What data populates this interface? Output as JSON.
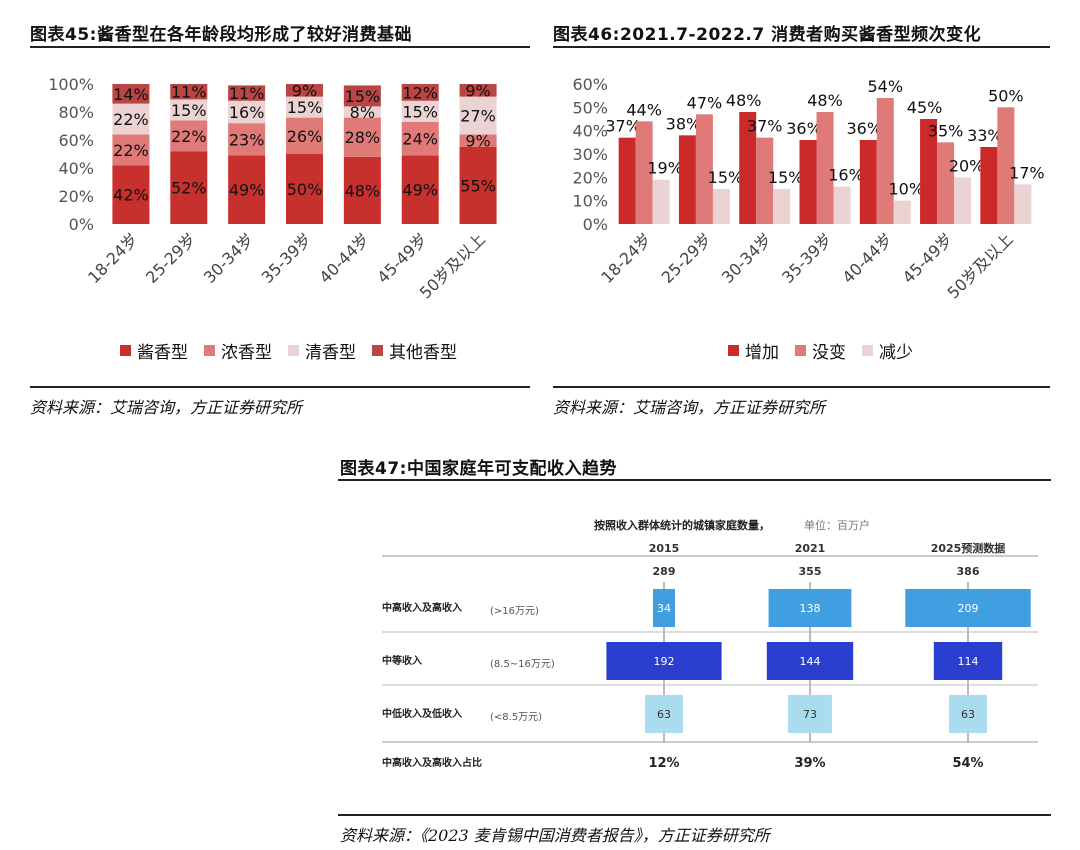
{
  "left": {
    "title": "图表45:酱香型在各年龄段均形成了较好消费基础",
    "source": "资料来源：艾瑞咨询，方正证券研究所",
    "legend": [
      {
        "label": "酱香型",
        "color": "#c8302e"
      },
      {
        "label": "浓香型",
        "color": "#e07a78"
      },
      {
        "label": "清香型",
        "color": "#ecd3d3"
      },
      {
        "label": "其他香型",
        "color": "#b94545"
      }
    ]
  },
  "right": {
    "title": "图表46:2021.7-2022.7 消费者购买酱香型频次变化",
    "source": "资料来源：艾瑞咨询，方正证券研究所",
    "legend": [
      {
        "label": "增加",
        "color": "#cc2a2a"
      },
      {
        "label": "没变",
        "color": "#e07a78"
      },
      {
        "label": "减少",
        "color": "#ecd3d3"
      }
    ]
  },
  "bottom": {
    "title": "图表47:中国家庭年可支配收入趋势",
    "source": "资料来源：《2023 麦肯锡中国消费者报告》，方正证券研究所",
    "subtitle": "按照收入群体统计的城镇家庭数量，",
    "unit": "单位：百万户",
    "rows": [
      {
        "label": "中高收入及高收入",
        "range": "(>16万元)"
      },
      {
        "label": "中等收入",
        "range": "(8.5~16万元)"
      },
      {
        "label": "中低收入及低收入",
        "range": "(<8.5万元)"
      }
    ],
    "share_label": "中高收入及高收入占比"
  },
  "chart_data": [
    {
      "type": "bar",
      "stacked": true,
      "categories": [
        "18-24岁",
        "25-29岁",
        "30-34岁",
        "35-39岁",
        "40-44岁",
        "45-49岁",
        "50岁及以上"
      ],
      "series": [
        {
          "name": "酱香型",
          "values": [
            42,
            52,
            49,
            50,
            48,
            49,
            55
          ],
          "color": "#c8302e"
        },
        {
          "name": "浓香型",
          "values": [
            22,
            22,
            23,
            26,
            28,
            24,
            9
          ],
          "color": "#e07a78"
        },
        {
          "name": "清香型",
          "values": [
            22,
            15,
            16,
            15,
            8,
            15,
            27
          ],
          "color": "#ecd3d3"
        },
        {
          "name": "其他香型",
          "values": [
            14,
            11,
            11,
            9,
            15,
            12,
            9
          ],
          "color": "#b94545"
        }
      ],
      "yticks": [
        "0%",
        "20%",
        "40%",
        "60%",
        "80%",
        "100%"
      ],
      "ylim": [
        0,
        100
      ]
    },
    {
      "type": "bar",
      "categories": [
        "18-24岁",
        "25-29岁",
        "30-34岁",
        "35-39岁",
        "40-44岁",
        "45-49岁",
        "50岁及以上"
      ],
      "series": [
        {
          "name": "增加",
          "values": [
            37,
            38,
            48,
            36,
            36,
            45,
            33
          ],
          "color": "#cc2a2a"
        },
        {
          "name": "没变",
          "values": [
            44,
            47,
            37,
            48,
            54,
            35,
            50
          ],
          "color": "#e07a78"
        },
        {
          "name": "减少",
          "values": [
            19,
            15,
            15,
            16,
            10,
            20,
            17
          ],
          "color": "#ecd3d3"
        }
      ],
      "yticks": [
        "0%",
        "10%",
        "20%",
        "30%",
        "40%",
        "50%",
        "60%"
      ],
      "ylim": [
        0,
        60
      ]
    },
    {
      "type": "bar",
      "layout": "centered-horizontal",
      "columns": [
        "2015",
        "2021",
        "2025预测数据"
      ],
      "totals": [
        289,
        355,
        386
      ],
      "series": [
        {
          "name": "中高收入及高收入",
          "values": [
            34,
            138,
            209
          ],
          "color": "#3f9fe0"
        },
        {
          "name": "中等收入",
          "values": [
            192,
            144,
            114
          ],
          "color": "#2a3fd0"
        },
        {
          "name": "中低收入及低收入",
          "values": [
            63,
            73,
            63
          ],
          "color": "#a8dcee"
        }
      ],
      "share": [
        "12%",
        "39%",
        "54%"
      ]
    }
  ]
}
